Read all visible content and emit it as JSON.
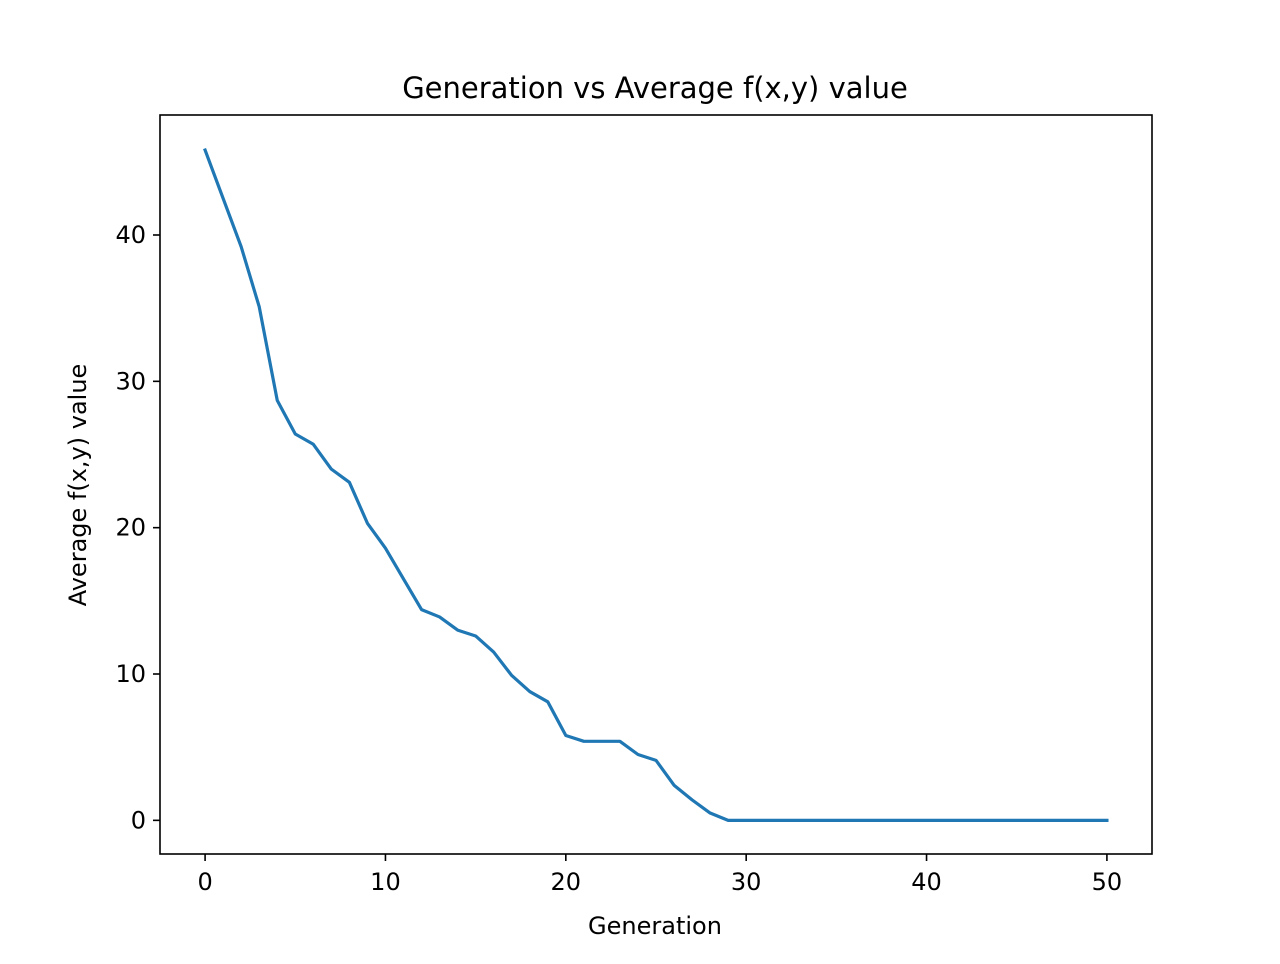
{
  "chart_data": {
    "type": "line",
    "title": "Generation vs Average f(x,y) value",
    "xlabel": "Generation",
    "ylabel": "Average f(x,y) value",
    "xlim": [
      -2.5,
      52.5
    ],
    "ylim": [
      -2.3,
      48.2
    ],
    "xticks": [
      0,
      10,
      20,
      30,
      40,
      50
    ],
    "yticks": [
      0,
      10,
      20,
      30,
      40
    ],
    "grid": false,
    "legend": "none",
    "series": [
      {
        "color": "#1f77b4",
        "x": [
          0,
          1,
          2,
          3,
          4,
          5,
          6,
          7,
          8,
          9,
          10,
          11,
          12,
          13,
          14,
          15,
          16,
          17,
          18,
          19,
          20,
          21,
          22,
          23,
          24,
          25,
          26,
          27,
          28,
          29,
          30,
          31,
          32,
          33,
          34,
          35,
          36,
          37,
          38,
          39,
          40,
          41,
          42,
          43,
          44,
          45,
          46,
          47,
          48,
          49,
          50
        ],
        "y": [
          45.8,
          42.5,
          39.2,
          35.1,
          28.7,
          26.4,
          25.7,
          24.0,
          23.1,
          20.3,
          18.6,
          16.5,
          14.4,
          13.9,
          13.0,
          12.6,
          11.5,
          9.9,
          8.8,
          8.1,
          5.8,
          5.4,
          5.4,
          5.4,
          4.5,
          4.1,
          2.4,
          1.4,
          0.5,
          0.0,
          0.0,
          0.0,
          0.0,
          0.0,
          0.0,
          0.0,
          0.0,
          0.0,
          0.0,
          0.0,
          0.0,
          0.0,
          0.0,
          0.0,
          0.0,
          0.0,
          0.0,
          0.0,
          0.0,
          0.0,
          0.0
        ]
      }
    ]
  }
}
